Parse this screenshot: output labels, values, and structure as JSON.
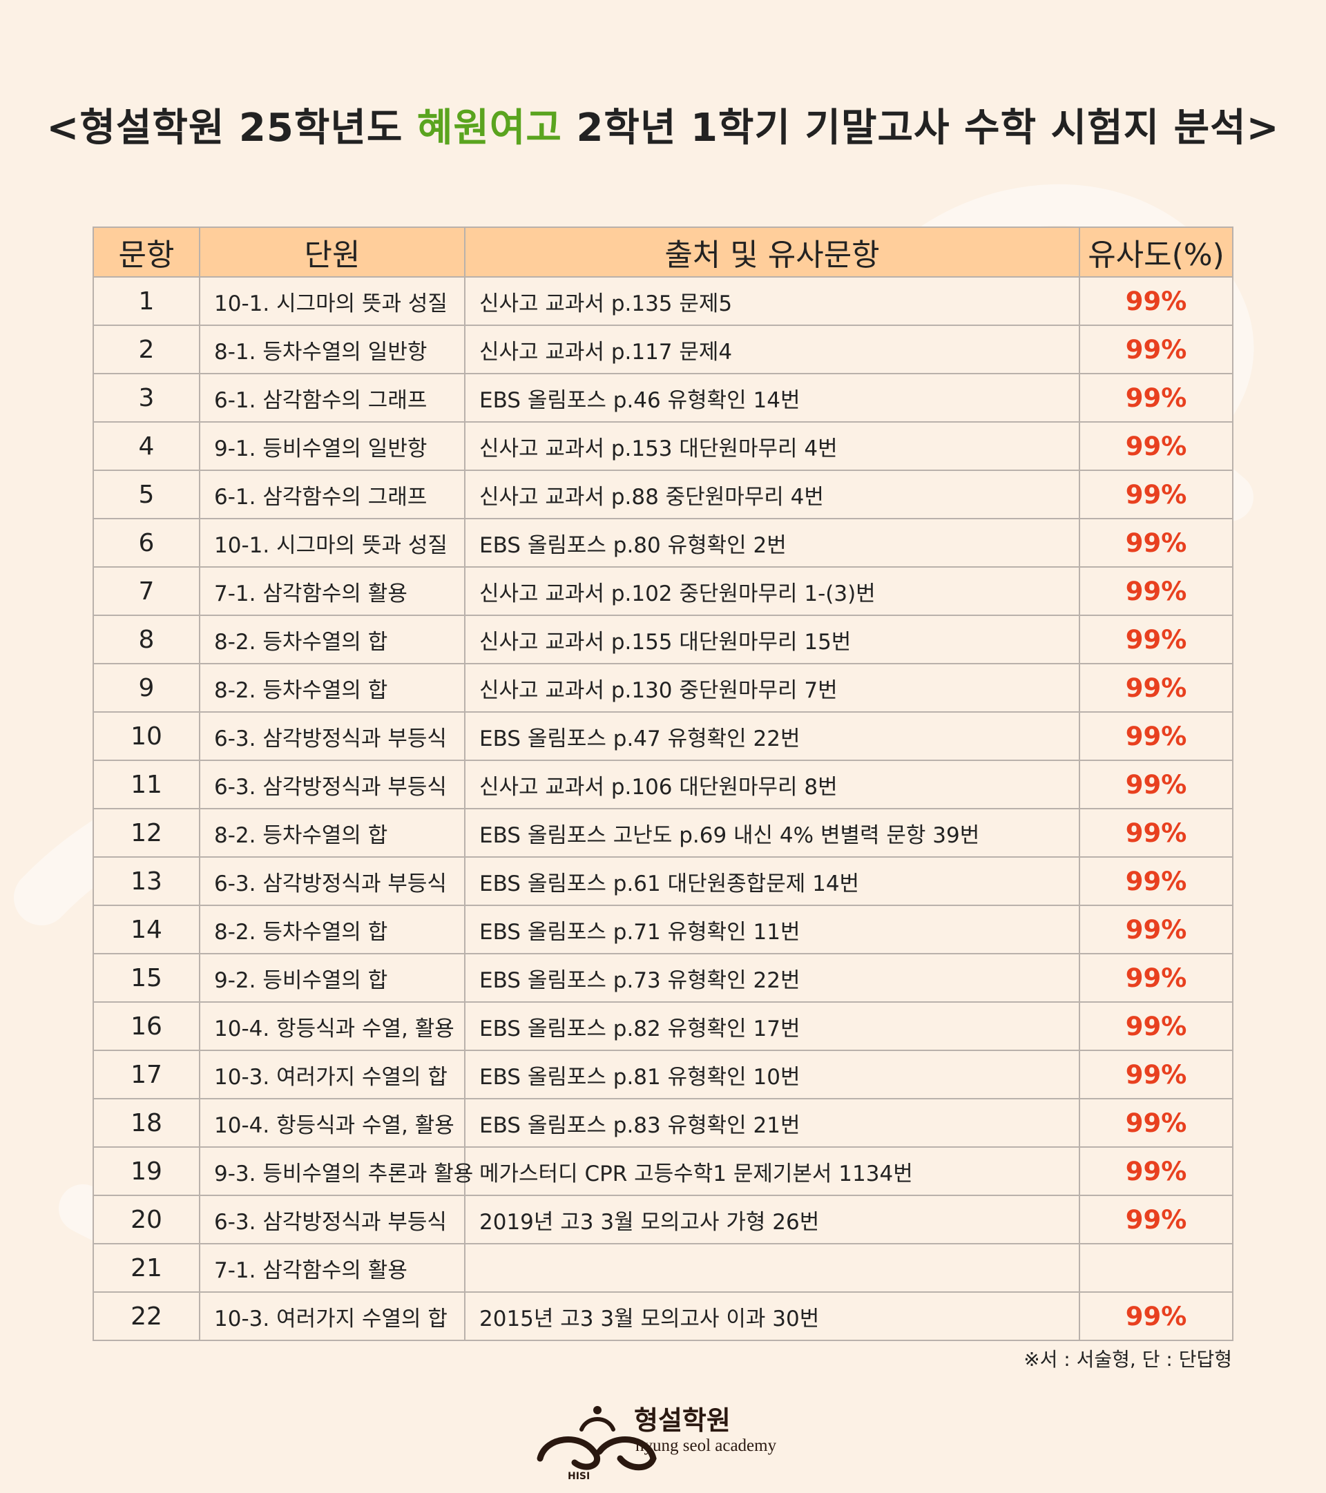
{
  "title": {
    "before": "<형설학원 25학년도 ",
    "highlight": "혜원여고",
    "after": " 2학년 1학기 기말고사 수학 시험지 분석>"
  },
  "table": {
    "headers": [
      "문항",
      "단원",
      "출처 및 유사문항",
      "유사도(%)"
    ],
    "rows": [
      {
        "num": "1",
        "unit": "10-1. 시그마의 뜻과 성질",
        "source": "신사고 교과서 p.135 문제5",
        "similarity": "99%"
      },
      {
        "num": "2",
        "unit": "8-1. 등차수열의 일반항",
        "source": "신사고 교과서 p.117 문제4",
        "similarity": "99%"
      },
      {
        "num": "3",
        "unit": "6-1. 삼각함수의 그래프",
        "source": "EBS 올림포스 p.46 유형확인 14번",
        "similarity": "99%"
      },
      {
        "num": "4",
        "unit": "9-1. 등비수열의 일반항",
        "source": "신사고 교과서 p.153 대단원마무리 4번",
        "similarity": "99%"
      },
      {
        "num": "5",
        "unit": "6-1. 삼각함수의 그래프",
        "source": "신사고 교과서 p.88 중단원마무리 4번",
        "similarity": "99%"
      },
      {
        "num": "6",
        "unit": "10-1. 시그마의 뜻과 성질",
        "source": "EBS 올림포스 p.80 유형확인 2번",
        "similarity": "99%"
      },
      {
        "num": "7",
        "unit": "7-1. 삼각함수의 활용",
        "source": "신사고 교과서 p.102 중단원마무리 1-(3)번",
        "similarity": "99%"
      },
      {
        "num": "8",
        "unit": "8-2. 등차수열의 합",
        "source": "신사고 교과서 p.155 대단원마무리 15번",
        "similarity": "99%"
      },
      {
        "num": "9",
        "unit": "8-2. 등차수열의 합",
        "source": "신사고 교과서 p.130 중단원마무리 7번",
        "similarity": "99%"
      },
      {
        "num": "10",
        "unit": "6-3. 삼각방정식과 부등식",
        "source": "EBS 올림포스 p.47 유형확인 22번",
        "similarity": "99%"
      },
      {
        "num": "11",
        "unit": "6-3. 삼각방정식과 부등식",
        "source": "신사고 교과서 p.106 대단원마무리 8번",
        "similarity": "99%"
      },
      {
        "num": "12",
        "unit": "8-2. 등차수열의 합",
        "source": "EBS 올림포스 고난도 p.69 내신 4% 변별력 문항 39번",
        "similarity": "99%"
      },
      {
        "num": "13",
        "unit": "6-3. 삼각방정식과 부등식",
        "source": "EBS 올림포스 p.61 대단원종합문제 14번",
        "similarity": "99%"
      },
      {
        "num": "14",
        "unit": "8-2. 등차수열의 합",
        "source": "EBS 올림포스 p.71 유형확인 11번",
        "similarity": "99%"
      },
      {
        "num": "15",
        "unit": "9-2. 등비수열의 합",
        "source": "EBS 올림포스 p.73 유형확인 22번",
        "similarity": "99%"
      },
      {
        "num": "16",
        "unit": "10-4. 항등식과 수열, 활용",
        "source": "EBS 올림포스 p.82 유형확인 17번",
        "similarity": "99%"
      },
      {
        "num": "17",
        "unit": "10-3. 여러가지 수열의 합",
        "source": "EBS 올림포스 p.81 유형확인 10번",
        "similarity": "99%"
      },
      {
        "num": "18",
        "unit": "10-4. 항등식과 수열, 활용",
        "source": "EBS 올림포스 p.83 유형확인 21번",
        "similarity": "99%"
      },
      {
        "num": "19",
        "unit": "9-3. 등비수열의 추론과 활용",
        "source": "메가스터디 CPR 고등수학1 문제기본서 1134번",
        "similarity": "99%"
      },
      {
        "num": "20",
        "unit": "6-3. 삼각방정식과 부등식",
        "source": "2019년 고3 3월 모의고사 가형 26번",
        "similarity": "99%"
      },
      {
        "num": "21",
        "unit": "7-1. 삼각함수의 활용",
        "source": "",
        "similarity": ""
      },
      {
        "num": "22",
        "unit": "10-3. 여러가지 수열의 합",
        "source": "2015년 고3 3월 모의고사 이과 30번",
        "similarity": "99%"
      }
    ]
  },
  "note": "※서 : 서술형, 단 : 단답형",
  "logo": {
    "name": "형설학원",
    "subtitle": "hyung seol academy",
    "mark_text": "HISI",
    "icon": "hyungseol-logo-icon"
  },
  "colors": {
    "background": "#fcf1e5",
    "header": "#ffce9b",
    "highlight": "#5aa41f",
    "similarity": "#e8401f"
  }
}
